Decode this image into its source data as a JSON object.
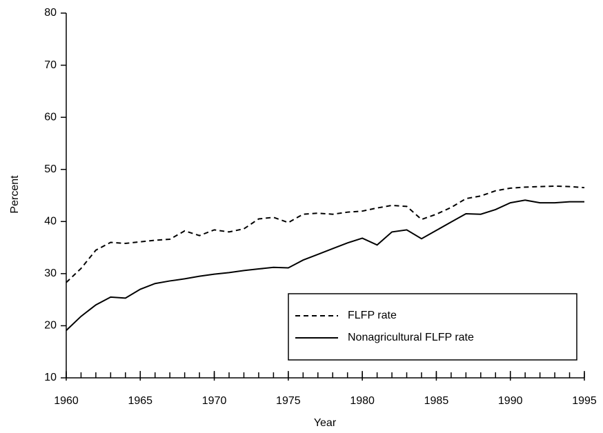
{
  "chart_data": {
    "type": "line",
    "xlabel": "Year",
    "ylabel": "Percent",
    "x": [
      1960,
      1961,
      1962,
      1963,
      1964,
      1965,
      1966,
      1967,
      1968,
      1969,
      1970,
      1971,
      1972,
      1973,
      1974,
      1975,
      1976,
      1977,
      1978,
      1979,
      1980,
      1981,
      1982,
      1983,
      1984,
      1985,
      1986,
      1987,
      1988,
      1989,
      1990,
      1991,
      1992,
      1993,
      1994,
      1995
    ],
    "series": [
      {
        "name": "FLFP rate",
        "color": "#000000",
        "line_style": "dashed",
        "values": [
          28.3,
          31.0,
          34.5,
          36.0,
          35.8,
          36.1,
          36.4,
          36.6,
          38.2,
          37.3,
          38.4,
          38.0,
          38.6,
          40.5,
          40.8,
          39.8,
          41.4,
          41.6,
          41.4,
          41.8,
          42.0,
          42.6,
          43.1,
          42.9,
          40.4,
          41.4,
          42.7,
          44.4,
          44.9,
          45.9,
          46.4,
          46.6,
          46.7,
          46.8,
          46.7,
          46.5
        ]
      },
      {
        "name": "Nonagricultural FLFP rate",
        "color": "#000000",
        "line_style": "solid",
        "values": [
          19.1,
          21.8,
          24.0,
          25.5,
          25.3,
          27.0,
          28.1,
          28.6,
          29.0,
          29.5,
          29.9,
          30.2,
          30.6,
          30.9,
          31.2,
          31.1,
          32.6,
          33.7,
          34.8,
          35.9,
          36.8,
          35.5,
          38.0,
          38.4,
          36.7,
          38.3,
          39.9,
          41.5,
          41.4,
          42.3,
          43.6,
          44.1,
          43.6,
          43.6,
          43.8,
          43.8
        ]
      }
    ],
    "xlim": [
      1960,
      1995
    ],
    "xticks": [
      1960,
      1965,
      1970,
      1975,
      1980,
      1985,
      1990,
      1995
    ],
    "ylim": [
      10,
      80
    ],
    "yticks": [
      10,
      20,
      30,
      40,
      50,
      60,
      70,
      80
    ],
    "grid": false,
    "legend": "lower right"
  }
}
